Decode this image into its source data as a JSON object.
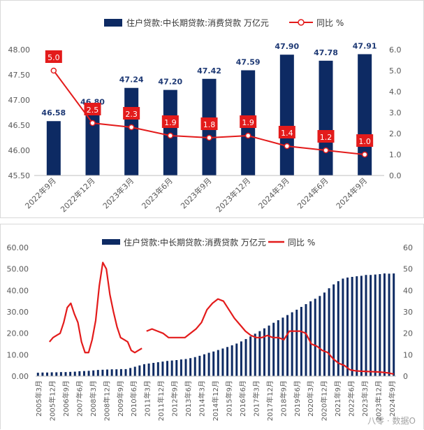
{
  "colors": {
    "bar": "#0d2a63",
    "line": "#e31b1b",
    "axis_text": "#595959",
    "grid": "#d9d9d9"
  },
  "chart_data": [
    {
      "type": "bar",
      "legend": {
        "bar_label": "住户贷款:中长期贷款:消费贷款 万亿元",
        "line_label": "同比 %",
        "placement": "top-center"
      },
      "categories": [
        "2022年9月",
        "2022年12月",
        "2023年3月",
        "2023年6月",
        "2023年9月",
        "2023年12月",
        "2024年3月",
        "2024年6月",
        "2024年9月"
      ],
      "series": [
        {
          "name": "住户贷款:中长期贷款:消费贷款 万亿元",
          "type": "bar",
          "axis": "left",
          "values": [
            46.58,
            46.8,
            47.24,
            47.2,
            47.42,
            47.59,
            47.9,
            47.78,
            47.91
          ],
          "data_labels": [
            "46.58",
            "46.80",
            "47.24",
            "47.20",
            "47.42",
            "47.59",
            "47.90",
            "47.78",
            "47.91"
          ]
        },
        {
          "name": "同比 %",
          "type": "line",
          "axis": "right",
          "values": [
            5.0,
            2.5,
            2.3,
            1.9,
            1.8,
            1.9,
            1.4,
            1.2,
            1.0
          ],
          "data_labels": [
            "5.0",
            "2.5",
            "2.3",
            "1.9",
            "1.8",
            "1.9",
            "1.4",
            "1.2",
            "1.0"
          ]
        }
      ],
      "y_left": {
        "min": 45.5,
        "max": 48.0,
        "ticks": [
          "45.50",
          "46.00",
          "46.50",
          "47.00",
          "47.50",
          "48.00"
        ]
      },
      "y_right": {
        "min": 0,
        "max": 6,
        "ticks": [
          "0.0",
          "1.0",
          "2.0",
          "3.0",
          "4.0",
          "5.0",
          "6.0"
        ]
      },
      "grid": false
    },
    {
      "type": "bar",
      "legend": {
        "bar_label": "住户贷款:中长期贷款:消费贷款 万亿元",
        "line_label": "同比 %",
        "placement": "top-center"
      },
      "x_tick_labels": [
        "2005年3月",
        "2005年12月",
        "2006年9月",
        "2007年6月",
        "2008年3月",
        "2008年12月",
        "2009年9月",
        "2010年6月",
        "2011年3月",
        "2011年12月",
        "2012年9月",
        "2013年6月",
        "2014年3月",
        "2014年12月",
        "2015年9月",
        "2016年6月",
        "2017年3月",
        "2017年12月",
        "2018年9月",
        "2019年6月",
        "2020年3月",
        "2020年12月",
        "2021年9月",
        "2022年6月",
        "2023年3月",
        "2023年12月",
        "2024年9月"
      ],
      "series": [
        {
          "name": "住户贷款:中长期贷款:消费贷款 万亿元",
          "type": "bar",
          "axis": "left",
          "values": [
            1.6,
            1.7,
            1.7,
            1.8,
            1.8,
            1.9,
            1.9,
            2.0,
            2.1,
            2.3,
            2.4,
            2.5,
            2.7,
            2.9,
            3.0,
            3.1,
            3.2,
            3.2,
            3.3,
            3.3,
            3.8,
            4.4,
            5.0,
            5.6,
            5.9,
            6.2,
            6.5,
            6.8,
            7.1,
            7.3,
            7.5,
            7.8,
            8.0,
            8.4,
            8.9,
            9.5,
            10.2,
            10.9,
            11.5,
            12.2,
            12.9,
            13.6,
            14.4,
            15.2,
            16.2,
            17.3,
            18.5,
            19.8,
            21.0,
            22.3,
            23.6,
            24.9,
            26.1,
            27.3,
            28.5,
            29.8,
            31.0,
            32.3,
            33.6,
            34.9,
            36.1,
            37.4,
            39.0,
            41.0,
            42.8,
            44.3,
            45.5,
            46.0,
            46.3,
            46.6,
            46.8,
            47.2,
            47.2,
            47.4,
            47.6,
            47.9,
            47.8,
            47.9
          ],
          "unit": "万亿元"
        },
        {
          "name": "同比 %",
          "type": "line",
          "axis": "right",
          "segments": [
            [
              16,
              18,
              19,
              20,
              25,
              32,
              34,
              29,
              25,
              16,
              11,
              11,
              17,
              26,
              42,
              53,
              50,
              38,
              30,
              23,
              18,
              17,
              16,
              12,
              11,
              12,
              13
            ],
            [
              21,
              22,
              21,
              20,
              18,
              18,
              18,
              18,
              20,
              22,
              25,
              31,
              34,
              36,
              35,
              31,
              27,
              24,
              21,
              19,
              18,
              18,
              19,
              18,
              18,
              17,
              21,
              21,
              21,
              20,
              15,
              14,
              12,
              11,
              8,
              6,
              5,
              3,
              2.5,
              2.3,
              2.2,
              2.1,
              2.0,
              1.8,
              1.5,
              1.0
            ]
          ],
          "unit": "%"
        }
      ],
      "y_left": {
        "min": 0,
        "max": 60,
        "ticks": [
          "0.00",
          "10.00",
          "20.00",
          "30.00",
          "40.00",
          "50.00",
          "60.00"
        ]
      },
      "y_right": {
        "min": 0,
        "max": 60,
        "ticks": [
          "0",
          "10",
          "20",
          "30",
          "40",
          "50",
          "60"
        ]
      },
      "grid": false
    }
  ],
  "watermark": "八零 · 数据O"
}
